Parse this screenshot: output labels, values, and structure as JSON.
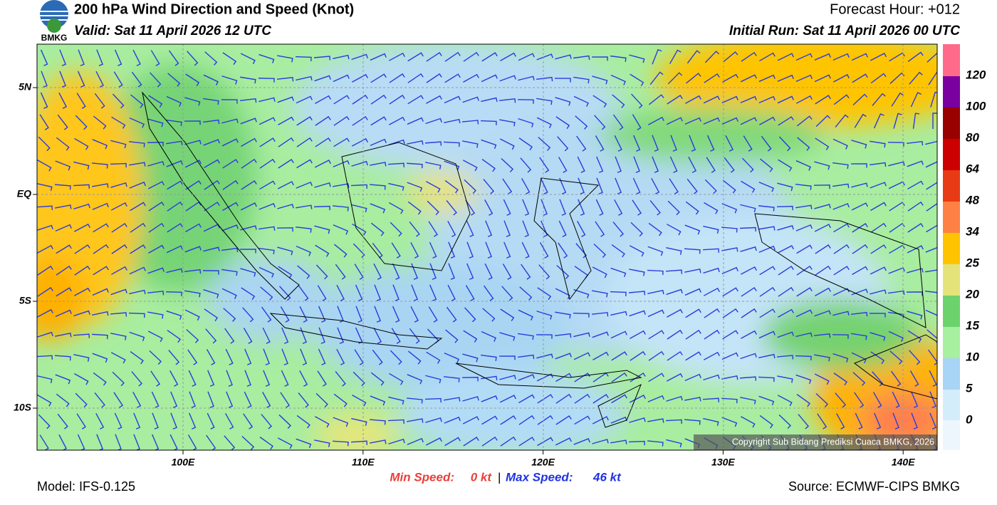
{
  "header": {
    "logo_text": "BMKG",
    "title": "200 hPa Wind Direction and Speed (Knot)",
    "valid": "Valid: Sat 11 April 2026 12 UTC",
    "forecast_hour": "Forecast Hour: +012",
    "initial_run": "Initial Run: Sat 11 April 2026 00 UTC"
  },
  "map": {
    "lat_labels": [
      "5N",
      "EQ",
      "5S",
      "10S"
    ],
    "lon_labels": [
      "100E",
      "110E",
      "120E",
      "130E",
      "140E"
    ],
    "copyright": "Copyright Sub Bidang Prediksi Cuaca BMKG, 2026"
  },
  "colorbar": {
    "labels": [
      "0",
      "5",
      "10",
      "15",
      "20",
      "25",
      "34",
      "48",
      "64",
      "80",
      "100",
      "120"
    ]
  },
  "footer": {
    "model": "Model: IFS-0.125",
    "min_label": "Min Speed:",
    "min_value": "0 kt",
    "separator": "|",
    "max_label": "Max Speed:",
    "max_value": "46 kt",
    "source": "Source: ECMWF-CIPS BMKG"
  }
}
